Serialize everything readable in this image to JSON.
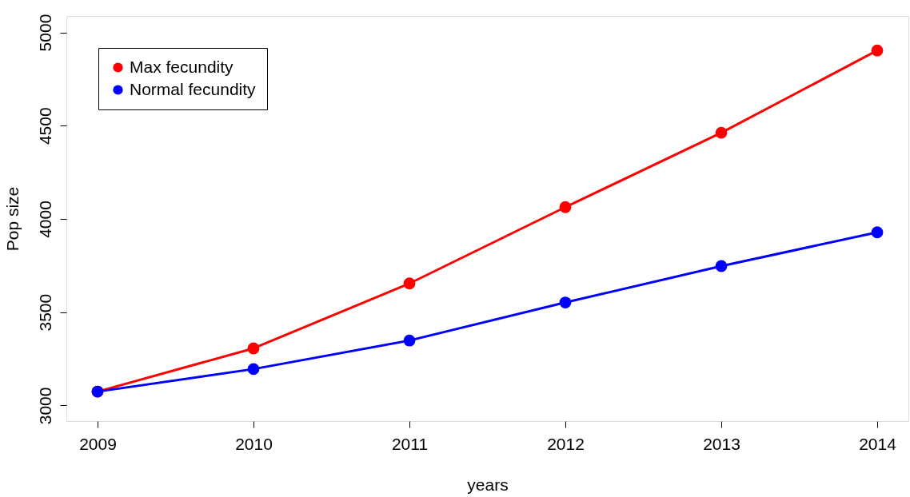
{
  "chart_data": {
    "type": "line",
    "xlabel": "years",
    "ylabel": "Pop size",
    "x": [
      2009,
      2010,
      2011,
      2012,
      2013,
      2014
    ],
    "series": [
      {
        "name": "Max fecundity",
        "color": "#ff0000",
        "values": [
          3074,
          3306,
          3654,
          4063,
          4462,
          4903
        ]
      },
      {
        "name": "Normal fecundity",
        "color": "#0000ff",
        "values": [
          3074,
          3195,
          3348,
          3552,
          3747,
          3928
        ]
      }
    ],
    "xlim": [
      2008.8,
      2014.2
    ],
    "xticks": [
      2009,
      2010,
      2011,
      2012,
      2013,
      2014
    ],
    "ylim": [
      2916,
      5088
    ],
    "yticks": [
      3000,
      3500,
      4000,
      4500,
      5000
    ],
    "legend": "top left",
    "marker": "circle",
    "line_style": "solid"
  }
}
